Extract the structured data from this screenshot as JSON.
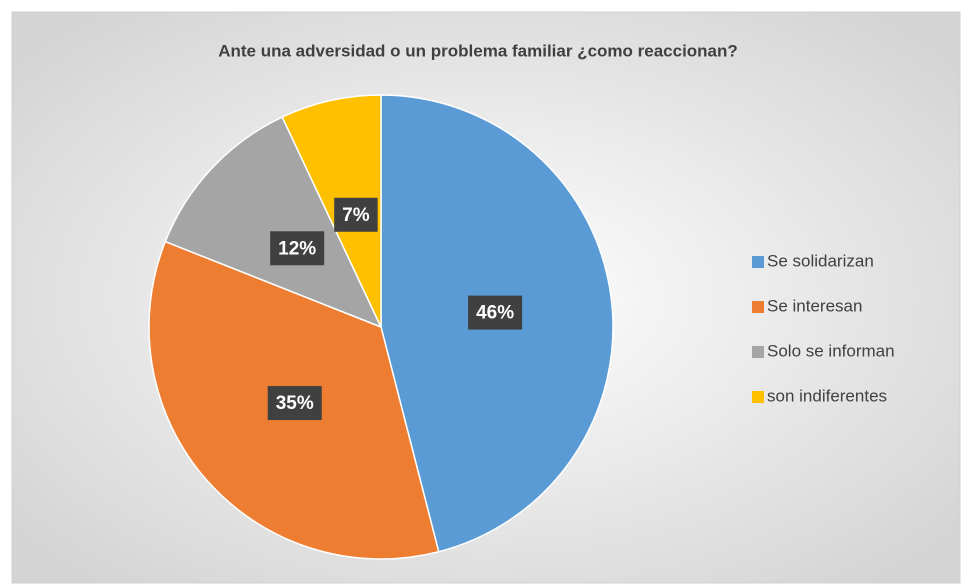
{
  "chart_data": {
    "type": "pie",
    "title": "Ante una adversidad o un problema familiar ¿como reaccionan?",
    "categories": [
      "Se solidarizan",
      "Se interesan",
      "Solo se informan",
      "son indiferentes"
    ],
    "values": [
      46,
      35,
      12,
      7
    ],
    "value_labels": [
      "46%",
      "35%",
      "12%",
      "7%"
    ],
    "colors": [
      "#5b9bd5",
      "#ed7d31",
      "#a5a5a5",
      "#ffc000"
    ],
    "legend": "right"
  }
}
